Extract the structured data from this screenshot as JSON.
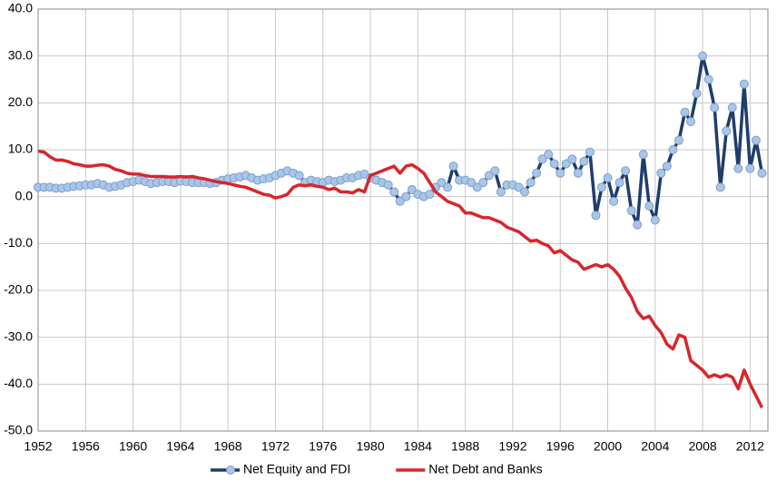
{
  "chart_data": {
    "type": "line",
    "x": [
      1952,
      1952.5,
      1953,
      1953.5,
      1954,
      1954.5,
      1955,
      1955.5,
      1956,
      1956.5,
      1957,
      1957.5,
      1958,
      1958.5,
      1959,
      1959.5,
      1960,
      1960.5,
      1961,
      1961.5,
      1962,
      1962.5,
      1963,
      1963.5,
      1964,
      1964.5,
      1965,
      1965.5,
      1966,
      1966.5,
      1967,
      1967.5,
      1968,
      1968.5,
      1969,
      1969.5,
      1970,
      1970.5,
      1971,
      1971.5,
      1972,
      1972.5,
      1973,
      1973.5,
      1974,
      1974.5,
      1975,
      1975.5,
      1976,
      1976.5,
      1977,
      1977.5,
      1978,
      1978.5,
      1979,
      1979.5,
      1980,
      1980.5,
      1981,
      1981.5,
      1982,
      1982.5,
      1983,
      1983.5,
      1984,
      1984.5,
      1985,
      1985.5,
      1986,
      1986.5,
      1987,
      1987.5,
      1988,
      1988.5,
      1989,
      1989.5,
      1990,
      1990.5,
      1991,
      1991.5,
      1992,
      1992.5,
      1993,
      1993.5,
      1994,
      1994.5,
      1995,
      1995.5,
      1996,
      1996.5,
      1997,
      1997.5,
      1998,
      1998.5,
      1999,
      1999.5,
      2000,
      2000.5,
      2001,
      2001.5,
      2002,
      2002.5,
      2003,
      2003.5,
      2004,
      2004.5,
      2005,
      2005.5,
      2006,
      2006.5,
      2007,
      2007.5,
      2008,
      2008.5,
      2009,
      2009.5,
      2010,
      2010.5,
      2011,
      2011.5,
      2012,
      2012.5,
      2013
    ],
    "series": [
      {
        "name": "Net Equity and FDI",
        "color": "#1f3d6b",
        "marker_color": "#a9c6e8",
        "marker": true,
        "values": [
          2,
          2,
          2,
          1.8,
          1.8,
          2,
          2.2,
          2.3,
          2.5,
          2.5,
          2.8,
          2.5,
          2,
          2.2,
          2.5,
          3,
          3.2,
          3.5,
          3.2,
          2.8,
          3,
          3.2,
          3.2,
          3,
          3.3,
          3.2,
          3,
          3,
          3,
          2.8,
          3,
          3.5,
          3.8,
          4,
          4.2,
          4.5,
          4,
          3.5,
          3.8,
          4,
          4.5,
          5,
          5.5,
          5,
          4.5,
          3,
          3.5,
          3.2,
          3,
          3.5,
          3.2,
          3.5,
          4,
          4,
          4.5,
          4.8,
          4,
          3.5,
          3,
          2.5,
          1,
          -1,
          0,
          1.5,
          0.5,
          0,
          0.5,
          2,
          3,
          2,
          6.5,
          3.5,
          3.5,
          3,
          2,
          3,
          4.5,
          5.5,
          1,
          2.5,
          2.5,
          2,
          1,
          3,
          5,
          8,
          9,
          7,
          5,
          7,
          8,
          5,
          7.5,
          9.5,
          -4,
          2,
          4,
          -1,
          3,
          5.5,
          -3,
          -6,
          9,
          -2,
          -5,
          5,
          6.5,
          10,
          12,
          18,
          16,
          22,
          30,
          25,
          19,
          2,
          14,
          19,
          6,
          24,
          6,
          12,
          5
        ]
      },
      {
        "name": "Net Debt and Banks",
        "color": "#d7262b",
        "marker": false,
        "values": [
          9.7,
          9.5,
          8.5,
          7.8,
          7.8,
          7.5,
          7,
          6.8,
          6.5,
          6.5,
          6.7,
          6.8,
          6.5,
          5.8,
          5.5,
          5,
          4.8,
          4.8,
          4.5,
          4.3,
          4.3,
          4.3,
          4.2,
          4.2,
          4.3,
          4.2,
          4.3,
          4,
          3.8,
          3.5,
          3.2,
          3,
          2.8,
          2.5,
          2.2,
          2,
          1.5,
          1,
          0.5,
          0.3,
          -0.3,
          0,
          0.5,
          2,
          2.5,
          2.3,
          2.5,
          2.2,
          2,
          1.5,
          1.8,
          1,
          1,
          0.8,
          1.5,
          1,
          4.5,
          5,
          5.5,
          6,
          6.5,
          5,
          6.5,
          6.8,
          6,
          5,
          3,
          1,
          0,
          -1,
          -1.5,
          -2,
          -3.5,
          -3.5,
          -4,
          -4.5,
          -4.5,
          -5,
          -5.5,
          -6.5,
          -7,
          -7.5,
          -8.5,
          -9.5,
          -9.3,
          -10,
          -10.5,
          -12,
          -11.5,
          -12.5,
          -13.5,
          -14,
          -15.5,
          -15,
          -14.5,
          -15,
          -14.5,
          -15.5,
          -17,
          -19.5,
          -21.5,
          -24.5,
          -26,
          -25.5,
          -27.5,
          -29,
          -31.5,
          -32.5,
          -29.5,
          -30,
          -35,
          -36,
          -37,
          -38.5,
          -38,
          -38.5,
          -38,
          -38.5,
          -41,
          -37,
          -40,
          -42.5,
          -45
        ]
      }
    ],
    "xlim": [
      1952,
      2013.5
    ],
    "xticks": [
      1952,
      1956,
      1960,
      1964,
      1968,
      1972,
      1976,
      1980,
      1984,
      1988,
      1992,
      1996,
      2000,
      2004,
      2008,
      2012
    ],
    "ylim": [
      -50,
      40
    ],
    "yticks": [
      {
        "value": -50,
        "label": "-50.0"
      },
      {
        "value": -40,
        "label": "-40.0"
      },
      {
        "value": -30,
        "label": "-30.0"
      },
      {
        "value": -20,
        "label": "-20.0"
      },
      {
        "value": -10,
        "label": "-10.0"
      },
      {
        "value": 0,
        "label": "0.0"
      },
      {
        "value": 10,
        "label": "10.0"
      },
      {
        "value": 20,
        "label": "20.0"
      },
      {
        "value": 30,
        "label": "30.0"
      },
      {
        "value": 40,
        "label": "40.0"
      }
    ],
    "grid": true,
    "legend": "bottom"
  }
}
